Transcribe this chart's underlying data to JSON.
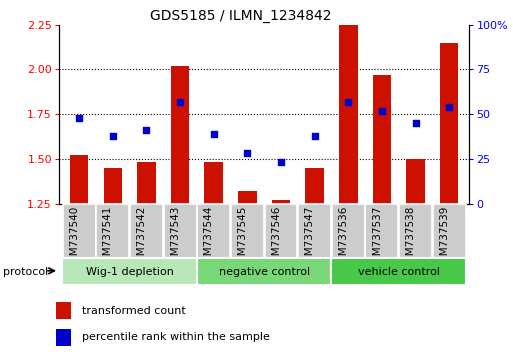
{
  "title": "GDS5185 / ILMN_1234842",
  "samples": [
    "GSM737540",
    "GSM737541",
    "GSM737542",
    "GSM737543",
    "GSM737544",
    "GSM737545",
    "GSM737546",
    "GSM737547",
    "GSM737536",
    "GSM737537",
    "GSM737538",
    "GSM737539"
  ],
  "bar_values": [
    1.52,
    1.45,
    1.48,
    2.02,
    1.48,
    1.32,
    1.27,
    1.45,
    2.25,
    1.97,
    1.5,
    2.15
  ],
  "dot_percentiles": [
    48,
    38,
    41,
    57,
    39,
    28,
    23,
    38,
    57,
    52,
    45,
    54
  ],
  "groups": [
    {
      "label": "Wig-1 depletion",
      "indices": [
        0,
        1,
        2,
        3
      ],
      "color": "#b8e8b8"
    },
    {
      "label": "negative control",
      "indices": [
        4,
        5,
        6,
        7
      ],
      "color": "#78d878"
    },
    {
      "label": "vehicle control",
      "indices": [
        8,
        9,
        10,
        11
      ],
      "color": "#48c848"
    }
  ],
  "ylim_left": [
    1.25,
    2.25
  ],
  "ylim_right": [
    0,
    100
  ],
  "yticks_left": [
    1.25,
    1.5,
    1.75,
    2.0,
    2.25
  ],
  "yticks_right": [
    0,
    25,
    50,
    75,
    100
  ],
  "ytick_labels_right": [
    "0",
    "25",
    "50",
    "75",
    "100%"
  ],
  "bar_color": "#cc1100",
  "dot_color": "#0000cc",
  "bar_width": 0.55,
  "legend_red": "transformed count",
  "legend_blue": "percentile rank within the sample",
  "protocol_label": "protocol",
  "sample_box_color": "#cccccc",
  "title_fontsize": 10,
  "label_fontsize": 7.5,
  "group_fontsize": 8
}
